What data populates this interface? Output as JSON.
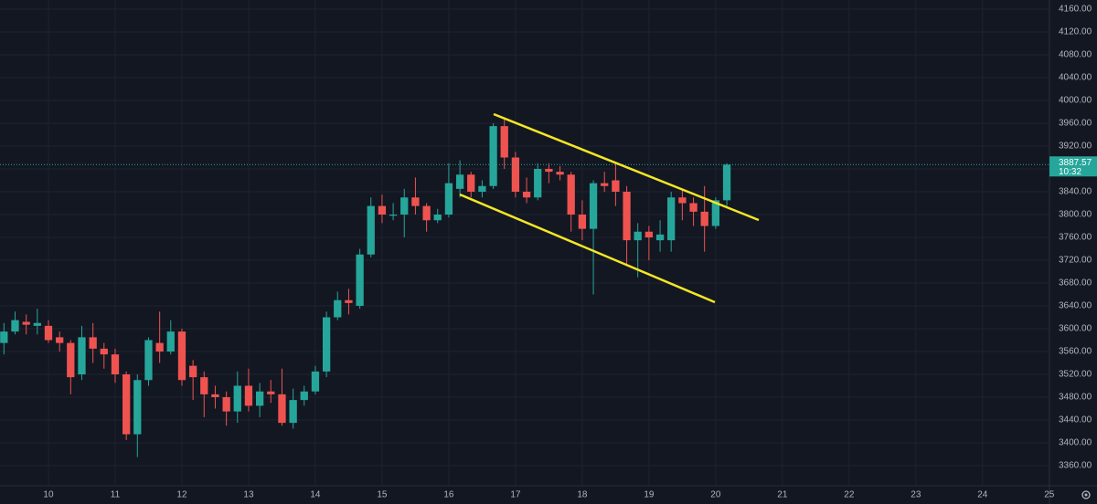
{
  "chart_data": {
    "type": "candlestick",
    "up_color": "#26a69a",
    "down_color": "#ef5350",
    "grid": true,
    "x": [
      9.333,
      9.5,
      9.667,
      9.833,
      10,
      10.167,
      10.333,
      10.5,
      10.667,
      10.833,
      11,
      11.167,
      11.333,
      11.5,
      11.667,
      11.833,
      12,
      12.167,
      12.333,
      12.5,
      12.667,
      12.833,
      13,
      13.167,
      13.333,
      13.5,
      13.667,
      13.833,
      14,
      14.167,
      14.333,
      14.5,
      14.667,
      14.833,
      15,
      15.167,
      15.333,
      15.5,
      15.667,
      15.833,
      16,
      16.167,
      16.333,
      16.5,
      16.667,
      16.833,
      17,
      17.167,
      17.333,
      17.5,
      17.667,
      17.833,
      18,
      18.167,
      18.333,
      18.5,
      18.667,
      18.833,
      19,
      19.167,
      19.333,
      19.5,
      19.667,
      19.833,
      20,
      20.167
    ],
    "open": [
      3575,
      3595,
      3612,
      3605,
      3605,
      3585,
      3575,
      3520,
      3585,
      3565,
      3555,
      3520,
      3415,
      3510,
      3575,
      3560,
      3595,
      3535,
      3515,
      3485,
      3480,
      3455,
      3500,
      3465,
      3490,
      3485,
      3435,
      3475,
      3490,
      3525,
      3620,
      3650,
      3640,
      3730,
      3815,
      3798,
      3800,
      3830,
      3815,
      3790,
      3800,
      3845,
      3870,
      3840,
      3850,
      3955,
      3900,
      3840,
      3830,
      3880,
      3875,
      3870,
      3800,
      3775,
      3855,
      3860,
      3840,
      3755,
      3770,
      3755,
      3755,
      3830,
      3820,
      3805,
      3780,
      3825
    ],
    "high": [
      3610,
      3630,
      3625,
      3635,
      3615,
      3595,
      3580,
      3605,
      3610,
      3575,
      3565,
      3525,
      3520,
      3585,
      3630,
      3615,
      3600,
      3545,
      3525,
      3500,
      3490,
      3525,
      3530,
      3505,
      3510,
      3530,
      3495,
      3500,
      3535,
      3630,
      3665,
      3670,
      3740,
      3830,
      3835,
      3820,
      3845,
      3865,
      3820,
      3810,
      3890,
      3895,
      3875,
      3860,
      3960,
      3970,
      3910,
      3865,
      3890,
      3890,
      3885,
      3875,
      3825,
      3860,
      3875,
      3890,
      3850,
      3785,
      3780,
      3790,
      3840,
      3845,
      3830,
      3850,
      3830,
      3890
    ],
    "low": [
      3555,
      3590,
      3590,
      3590,
      3575,
      3560,
      3485,
      3510,
      3540,
      3530,
      3505,
      3405,
      3375,
      3500,
      3540,
      3555,
      3500,
      3475,
      3445,
      3460,
      3430,
      3435,
      3455,
      3445,
      3470,
      3430,
      3425,
      3465,
      3485,
      3515,
      3615,
      3625,
      3635,
      3725,
      3785,
      3790,
      3760,
      3800,
      3770,
      3785,
      3795,
      3830,
      3830,
      3830,
      3845,
      3880,
      3830,
      3820,
      3825,
      3855,
      3860,
      3770,
      3755,
      3660,
      3840,
      3815,
      3710,
      3690,
      3720,
      3735,
      3735,
      3790,
      3780,
      3735,
      3775,
      3815
    ],
    "close": [
      3595,
      3615,
      3607,
      3610,
      3580,
      3575,
      3515,
      3585,
      3565,
      3555,
      3520,
      3415,
      3510,
      3580,
      3560,
      3595,
      3510,
      3515,
      3485,
      3480,
      3455,
      3500,
      3465,
      3490,
      3485,
      3435,
      3475,
      3490,
      3525,
      3620,
      3650,
      3645,
      3730,
      3815,
      3800,
      3800,
      3830,
      3815,
      3790,
      3800,
      3855,
      3870,
      3840,
      3850,
      3955,
      3900,
      3840,
      3830,
      3880,
      3875,
      3870,
      3800,
      3775,
      3855,
      3850,
      3840,
      3755,
      3770,
      3760,
      3765,
      3830,
      3820,
      3805,
      3780,
      3825,
      3887.57
    ],
    "last_price": 3887.57,
    "countdown": "10:32",
    "xlim": [
      9.274,
      25.03
    ],
    "ylim": [
      3328,
      4176
    ],
    "xticks": [
      10,
      11,
      12,
      13,
      14,
      15,
      16,
      17,
      18,
      19,
      20,
      21,
      22,
      23,
      24,
      25
    ],
    "yticks": [
      {
        "value": 3360,
        "label": "3360.00"
      },
      {
        "value": 3400,
        "label": "3400.00"
      },
      {
        "value": 3440,
        "label": "3440.00"
      },
      {
        "value": 3480,
        "label": "3480.00"
      },
      {
        "value": 3520,
        "label": "3520.00"
      },
      {
        "value": 3560,
        "label": "3560.00"
      },
      {
        "value": 3600,
        "label": "3600.00"
      },
      {
        "value": 3640,
        "label": "3640.00"
      },
      {
        "value": 3680,
        "label": "3680.00"
      },
      {
        "value": 3720,
        "label": "3720.00"
      },
      {
        "value": 3760,
        "label": "3760.00"
      },
      {
        "value": 3800,
        "label": "3800.00"
      },
      {
        "value": 3840,
        "label": "3840.00"
      },
      {
        "value": 3880,
        "label": "3880.00"
      },
      {
        "value": 3920,
        "label": "3920.00"
      },
      {
        "value": 3960,
        "label": "3960.00"
      },
      {
        "value": 4000,
        "label": "4000.00"
      },
      {
        "value": 4040,
        "label": "4040.00"
      },
      {
        "value": 4080,
        "label": "4080.00"
      },
      {
        "value": 4120,
        "label": "4120.00"
      },
      {
        "value": 4160,
        "label": "4160.00"
      }
    ]
  }
}
